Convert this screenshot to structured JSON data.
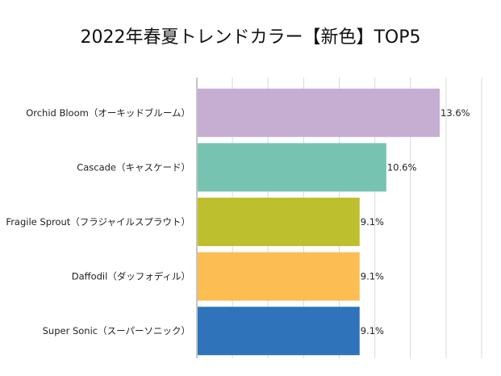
{
  "chart_data": {
    "type": "bar",
    "orientation": "horizontal",
    "title": "2022年春夏トレンドカラー【新色】TOP5",
    "categories": [
      "Orchid Bloom（オーキッドブルーム）",
      "Cascade（キャスケード）",
      "Fragile Sprout（フラジャイルスプラウト）",
      "Daffodil（ダッフォディル）",
      "Super Sonic（スーパーソニック）"
    ],
    "values": [
      13.6,
      10.6,
      9.1,
      9.1,
      9.1
    ],
    "value_labels": [
      "13.6%",
      "10.6%",
      "9.1%",
      "9.1%",
      "9.1%"
    ],
    "bar_colors": [
      "#c6aed3",
      "#75c3b0",
      "#bdbf2e",
      "#fcbe52",
      "#2f74ba"
    ],
    "xlim": [
      0,
      16
    ],
    "grid": true,
    "xlabel": "",
    "ylabel": ""
  }
}
